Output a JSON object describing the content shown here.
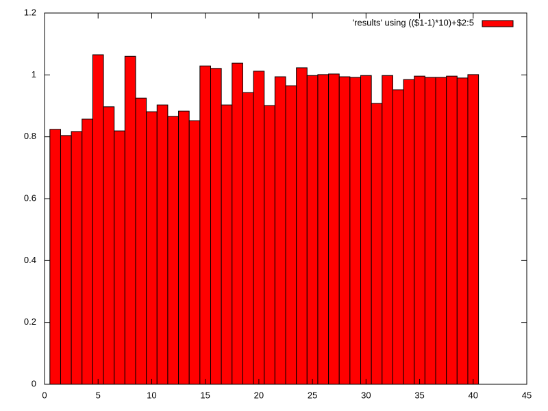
{
  "chart_data": {
    "type": "bar",
    "x": [
      1,
      2,
      3,
      4,
      5,
      6,
      7,
      8,
      9,
      10,
      11,
      12,
      13,
      14,
      15,
      16,
      17,
      18,
      19,
      20,
      21,
      22,
      23,
      24,
      25,
      26,
      27,
      28,
      29,
      30,
      31,
      32,
      33,
      34,
      35,
      36,
      37,
      38,
      39,
      40
    ],
    "series": [
      {
        "name": "'results' using (($1-1)*10)+$2:5",
        "color": "#ff0000",
        "values": [
          0.824,
          0.804,
          0.817,
          0.857,
          1.065,
          0.897,
          0.819,
          1.06,
          0.925,
          0.881,
          0.903,
          0.866,
          0.883,
          0.852,
          1.029,
          1.021,
          0.903,
          1.038,
          0.943,
          1.012,
          0.901,
          0.994,
          0.965,
          1.023,
          0.998,
          1.001,
          1.003,
          0.994,
          0.992,
          0.998,
          0.908,
          0.998,
          0.952,
          0.985,
          0.996,
          0.992,
          0.992,
          0.996,
          0.99,
          1.001
        ]
      }
    ],
    "xlim": [
      0,
      45
    ],
    "xticks": [
      0,
      5,
      10,
      15,
      20,
      25,
      30,
      35,
      40,
      45
    ],
    "ylim": [
      0,
      1.2
    ],
    "yticks": [
      0,
      0.2,
      0.4,
      0.6,
      0.8,
      1,
      1.2
    ],
    "legend": "top right"
  }
}
